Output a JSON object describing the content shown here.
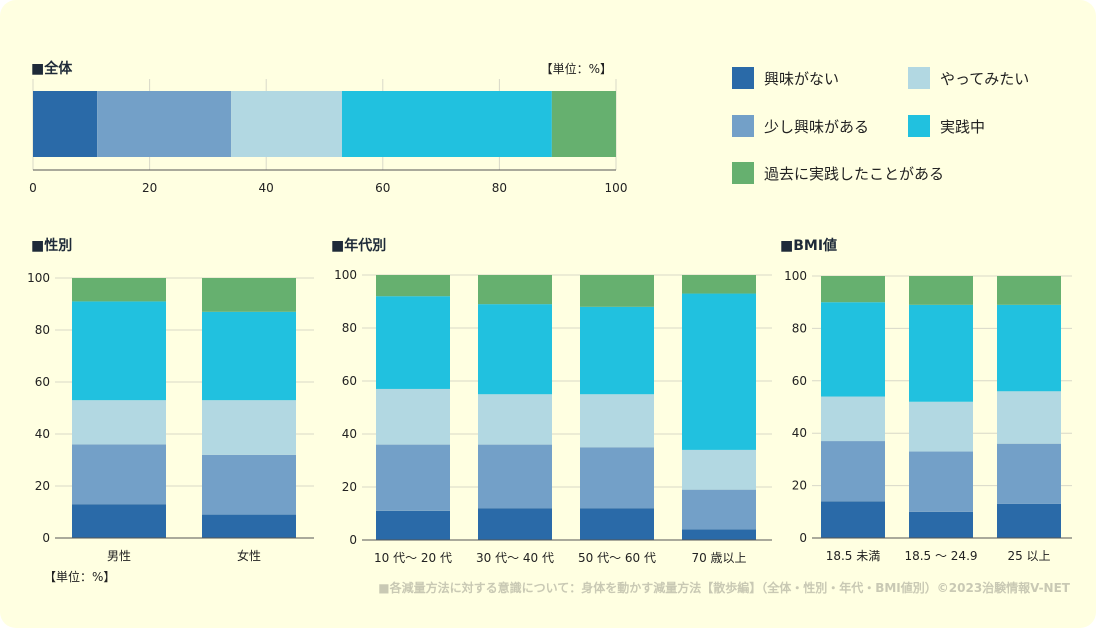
{
  "colors": {
    "segments": [
      "#2a6aa8",
      "#73a0c8",
      "#b2d8e2",
      "#21c1df",
      "#66b06f"
    ],
    "title_square": "#1e2a38",
    "footer": "#c9c9b4"
  },
  "legend": {
    "items": [
      {
        "label": "興味がない"
      },
      {
        "label": "やってみたい"
      },
      {
        "label": "少し興味がある"
      },
      {
        "label": "実践中"
      },
      {
        "label": "過去に実践したことがある"
      }
    ]
  },
  "units": {
    "overall": "【単位：%】",
    "bottom": "【単位：%】"
  },
  "footer": "■各減量方法に対する意識について：身体を動かす減量方法【散歩編】（全体・性別・年代・BMI値別）©2023治験情報V-NET",
  "chart_data": [
    {
      "id": "overall",
      "type": "bar",
      "orientation": "horizontal",
      "stacked": true,
      "title": "■全体",
      "categories": [
        "全体"
      ],
      "series": [
        {
          "name": "興味がない",
          "values": [
            11
          ]
        },
        {
          "name": "少し興味がある",
          "values": [
            23
          ]
        },
        {
          "name": "やってみたい",
          "values": [
            19
          ]
        },
        {
          "name": "実践中",
          "values": [
            36
          ]
        },
        {
          "name": "過去に実践したことがある",
          "values": [
            11
          ]
        }
      ],
      "xlim": [
        0,
        100
      ],
      "ticks": [
        "0",
        "20",
        "40",
        "60",
        "80",
        "100"
      ]
    },
    {
      "id": "gender",
      "type": "bar",
      "stacked": true,
      "title": "■性別",
      "categories": [
        "男性",
        "女性"
      ],
      "series": [
        {
          "name": "興味がない",
          "values": [
            13,
            9
          ]
        },
        {
          "name": "少し興味がある",
          "values": [
            23,
            23
          ]
        },
        {
          "name": "やってみたい",
          "values": [
            17,
            21
          ]
        },
        {
          "name": "実践中",
          "values": [
            38,
            34
          ]
        },
        {
          "name": "過去に実践したことがある",
          "values": [
            9,
            13
          ]
        }
      ],
      "ylim": [
        0,
        100
      ],
      "ticks": [
        "0",
        "20",
        "40",
        "60",
        "80",
        "100"
      ]
    },
    {
      "id": "age",
      "type": "bar",
      "stacked": true,
      "title": "■年代別",
      "categories": [
        "10 代～ 20 代",
        "30 代～ 40 代",
        "50 代～ 60 代",
        "70 歳以上"
      ],
      "series": [
        {
          "name": "興味がない",
          "values": [
            11,
            12,
            12,
            4
          ]
        },
        {
          "name": "少し興味がある",
          "values": [
            25,
            24,
            23,
            15
          ]
        },
        {
          "name": "やってみたい",
          "values": [
            21,
            19,
            20,
            15
          ]
        },
        {
          "name": "実践中",
          "values": [
            35,
            34,
            33,
            59
          ]
        },
        {
          "name": "過去に実践したことがある",
          "values": [
            8,
            11,
            12,
            7
          ]
        }
      ],
      "ylim": [
        0,
        100
      ],
      "ticks": [
        "0",
        "20",
        "40",
        "60",
        "80",
        "100"
      ]
    },
    {
      "id": "bmi",
      "type": "bar",
      "stacked": true,
      "title": "■BMI値",
      "categories": [
        "18.5 未満",
        "18.5 ～ 24.9",
        "25 以上"
      ],
      "series": [
        {
          "name": "興味がない",
          "values": [
            14,
            10,
            13
          ]
        },
        {
          "name": "少し興味がある",
          "values": [
            23,
            23,
            23
          ]
        },
        {
          "name": "やってみたい",
          "values": [
            17,
            19,
            20
          ]
        },
        {
          "name": "実践中",
          "values": [
            36,
            37,
            33
          ]
        },
        {
          "name": "過去に実践したことがある",
          "values": [
            10,
            11,
            11
          ]
        }
      ],
      "ylim": [
        0,
        100
      ],
      "ticks": [
        "0",
        "20",
        "40",
        "60",
        "80",
        "100"
      ]
    }
  ]
}
